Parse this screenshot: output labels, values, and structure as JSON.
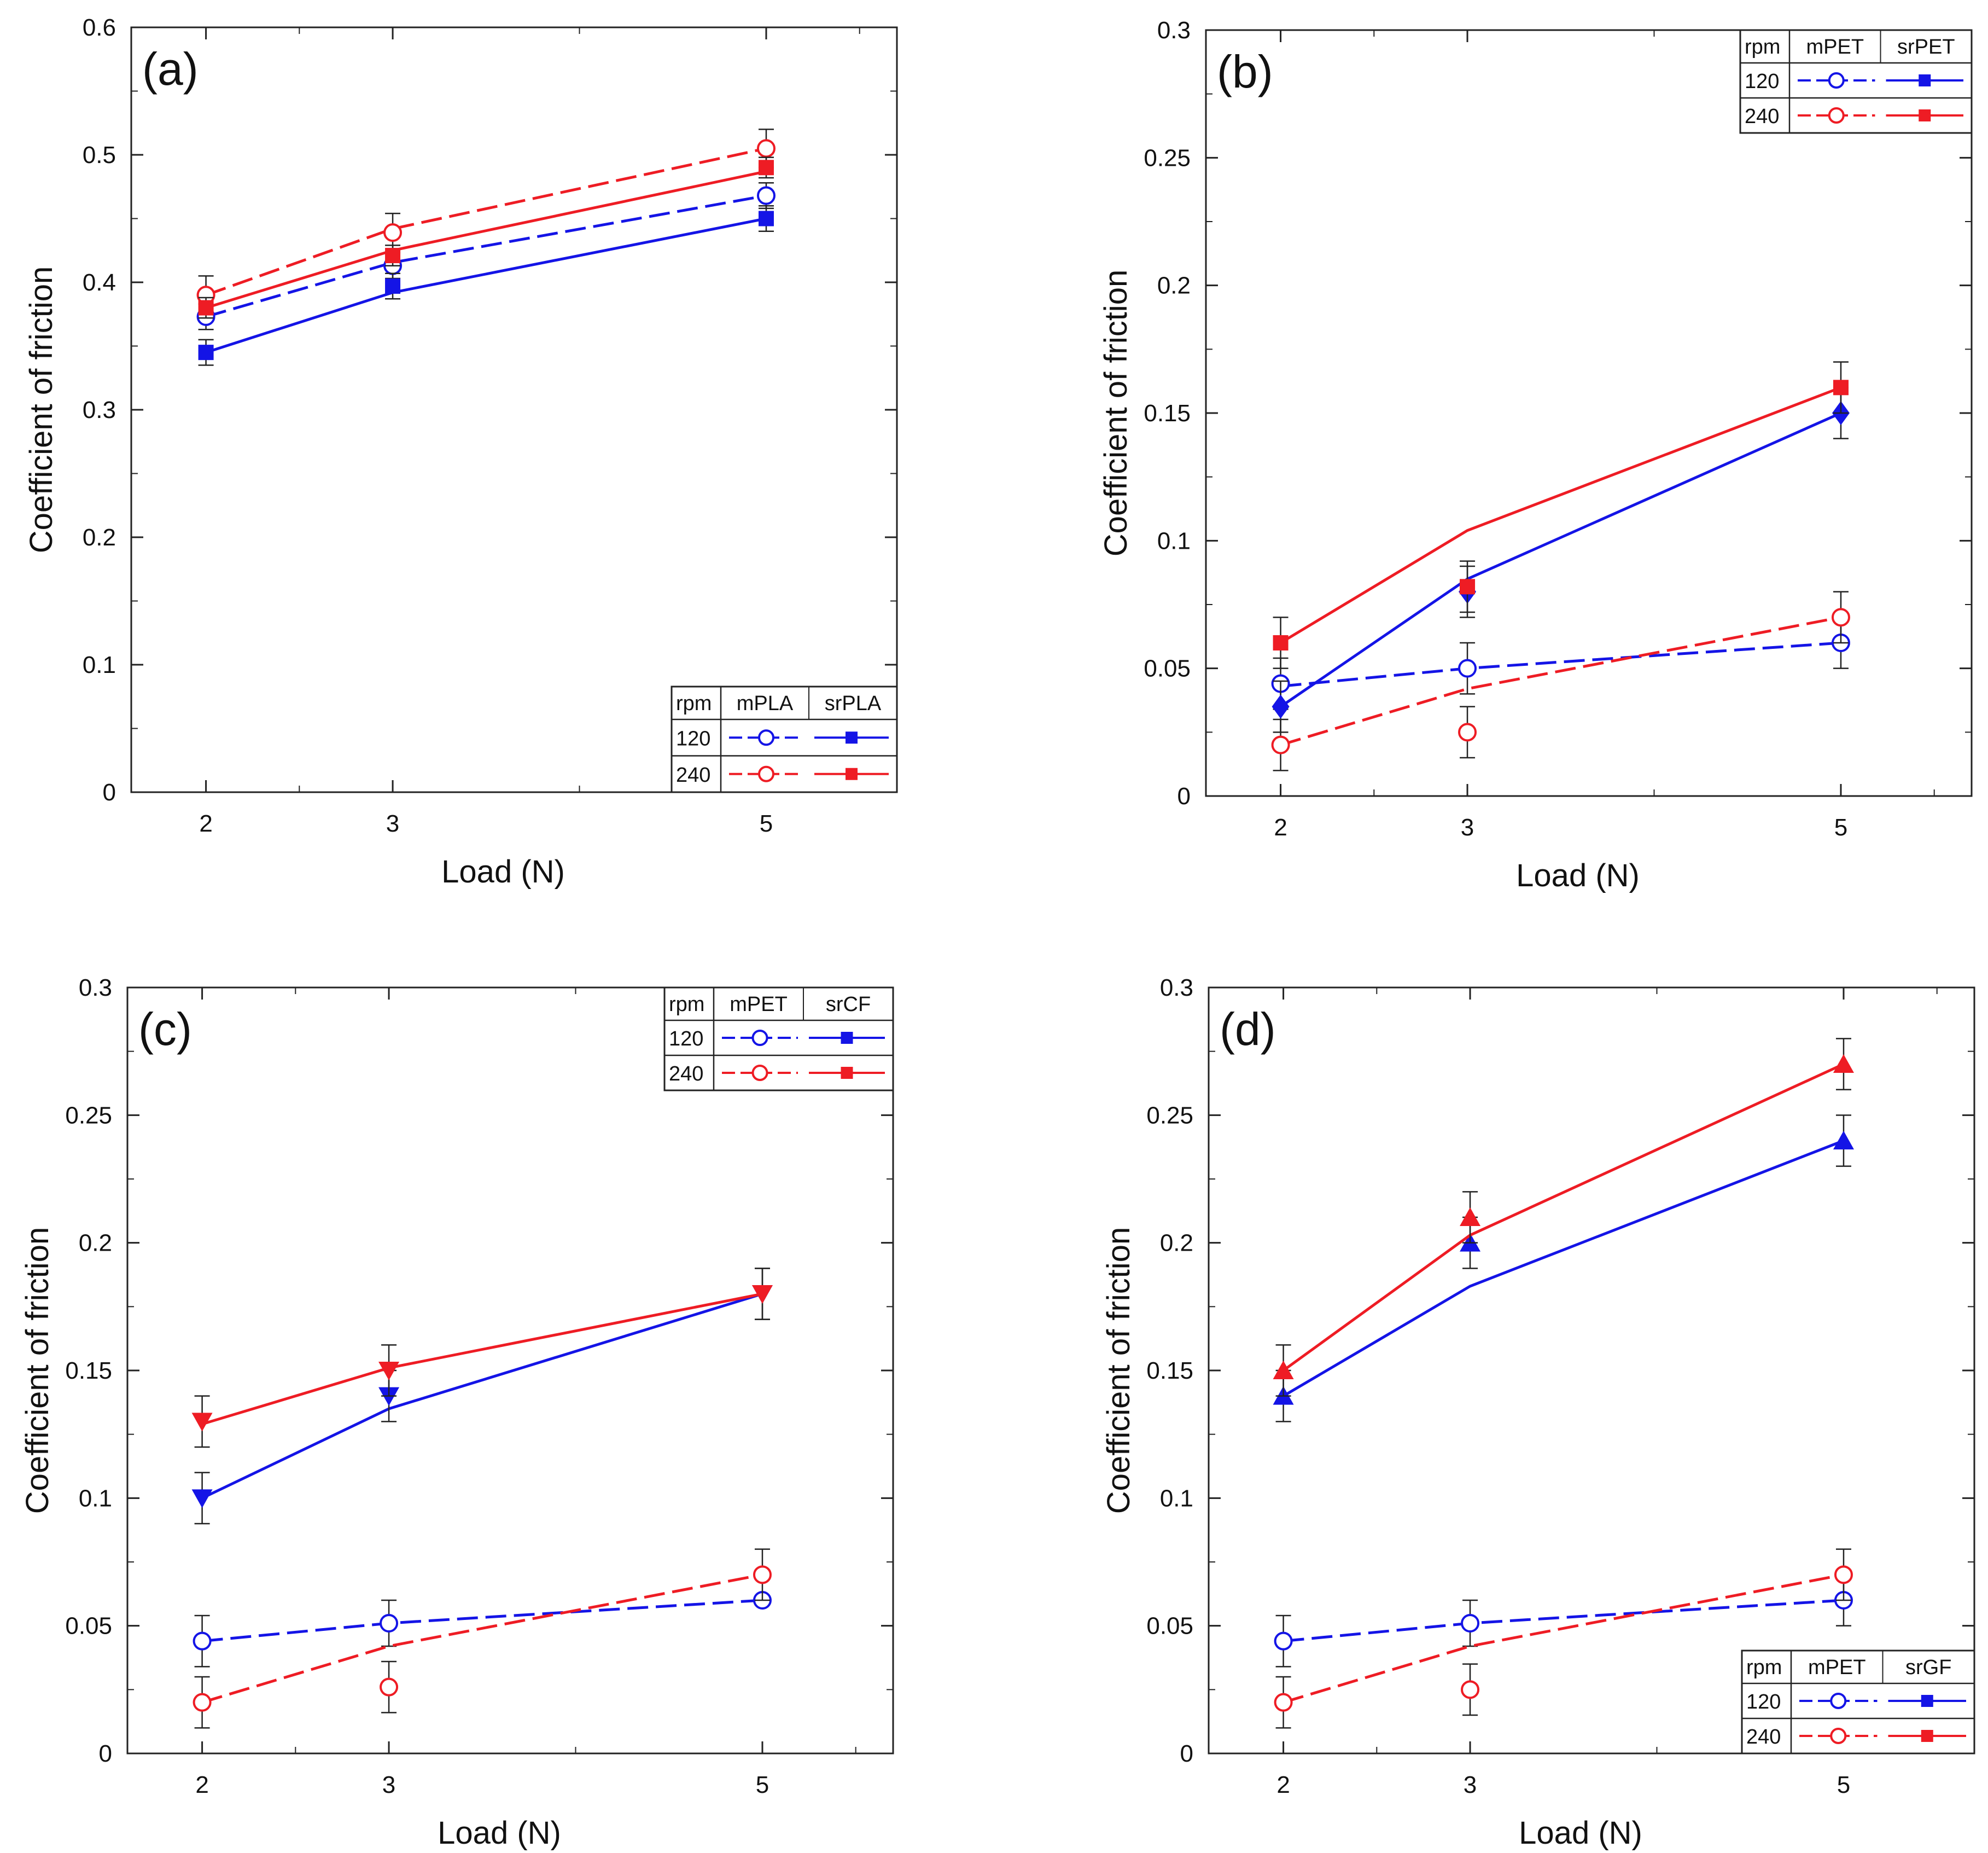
{
  "colors": {
    "rpm120": "#1414e6",
    "rpm240": "#ee1c24",
    "axis": "#222222",
    "errorbar": "#222222"
  },
  "chart_data": [
    {
      "type": "line",
      "label": "(a)",
      "xlabel": "Load (N)",
      "ylabel": "Coefficient of friction",
      "categories": [
        "2",
        "3",
        "5"
      ],
      "x": [
        2,
        3,
        5
      ],
      "xlim": [
        1.6,
        5.7
      ],
      "ylim": [
        0,
        0.6
      ],
      "yticks": [
        0,
        0.1,
        0.2,
        0.3,
        0.4,
        0.5,
        0.6
      ],
      "yticklabels": [
        "0",
        "0.1",
        "0.2",
        "0.3",
        "0.4",
        "0.5",
        "0.6"
      ],
      "legend": {
        "position": "bottom-right",
        "header": [
          "rpm",
          "mPLA",
          "srPLA"
        ],
        "rows": [
          "120",
          "240"
        ]
      },
      "series": [
        {
          "name": "mPLA 120 rpm",
          "rpm": "120",
          "material": "mPLA",
          "color": "blue",
          "marker": "circle-open",
          "line": "dashed",
          "values": [
            0.373,
            0.413,
            0.468
          ],
          "errors": [
            0.01,
            0.01,
            0.01
          ],
          "fit": [
            0.373,
            0.4155,
            0.468
          ]
        },
        {
          "name": "mPLA 240 rpm",
          "rpm": "240",
          "material": "mPLA",
          "color": "red",
          "marker": "circle-open",
          "line": "dashed",
          "values": [
            0.39,
            0.439,
            0.505
          ],
          "errors": [
            0.015,
            0.015,
            0.015
          ],
          "fit": [
            0.39,
            0.442,
            0.505
          ]
        },
        {
          "name": "srPLA 120 rpm",
          "rpm": "120",
          "material": "srPLA",
          "color": "blue",
          "marker": "square",
          "line": "solid",
          "values": [
            0.345,
            0.397,
            0.45
          ],
          "errors": [
            0.01,
            0.01,
            0.01
          ],
          "fit": [
            0.345,
            0.392,
            0.45
          ]
        },
        {
          "name": "srPLA 240 rpm",
          "rpm": "240",
          "material": "srPLA",
          "color": "red",
          "marker": "square",
          "line": "solid",
          "values": [
            0.38,
            0.421,
            0.49
          ],
          "errors": [
            0.008,
            0.008,
            0.008
          ],
          "fit": [
            0.38,
            0.425,
            0.487
          ]
        }
      ]
    },
    {
      "type": "line",
      "label": "(b)",
      "xlabel": "Load (N)",
      "ylabel": "Coefficient of friction",
      "categories": [
        "2",
        "3",
        "5"
      ],
      "x": [
        2,
        3,
        5
      ],
      "xlim": [
        1.6,
        5.7
      ],
      "ylim": [
        0,
        0.3
      ],
      "yticks": [
        0,
        0.05,
        0.1,
        0.15,
        0.2,
        0.25,
        0.3
      ],
      "yticklabels": [
        "0",
        "0.05",
        "0.1",
        "0.15",
        "0.2",
        "0.25",
        "0.3"
      ],
      "legend": {
        "position": "top-right",
        "header": [
          "rpm",
          "mPET",
          "srPET"
        ],
        "rows": [
          "120",
          "240"
        ]
      },
      "series": [
        {
          "name": "mPET 120 rpm",
          "rpm": "120",
          "material": "mPET",
          "color": "blue",
          "marker": "circle-open",
          "line": "dashed",
          "values": [
            0.044,
            0.05,
            0.06
          ],
          "errors": [
            0.01,
            0.01,
            0.01
          ],
          "fit": [
            0.043,
            0.05,
            0.06
          ]
        },
        {
          "name": "mPET 240 rpm",
          "rpm": "240",
          "material": "mPET",
          "color": "red",
          "marker": "circle-open",
          "line": "dashed",
          "values": [
            0.02,
            0.025,
            0.07
          ],
          "errors": [
            0.01,
            0.01,
            0.01
          ],
          "fit": [
            0.02,
            0.042,
            0.07
          ]
        },
        {
          "name": "srPET 120 rpm",
          "rpm": "120",
          "material": "srPET",
          "color": "blue",
          "marker": "diamond",
          "line": "solid",
          "values": [
            0.035,
            0.08,
            0.15
          ],
          "errors": [
            0.01,
            0.01,
            0.01
          ],
          "fit": [
            0.035,
            0.085,
            0.15
          ]
        },
        {
          "name": "srPET 240 rpm",
          "rpm": "240",
          "material": "srPET",
          "color": "red",
          "marker": "square",
          "line": "solid",
          "values": [
            0.06,
            0.082,
            0.16
          ],
          "errors": [
            0.01,
            0.01,
            0.01
          ],
          "fit": [
            0.06,
            0.104,
            0.16
          ]
        }
      ]
    },
    {
      "type": "line",
      "label": "(c)",
      "xlabel": "Load (N)",
      "ylabel": "Coefficient of friction",
      "categories": [
        "2",
        "3",
        "5"
      ],
      "x": [
        2,
        3,
        5
      ],
      "xlim": [
        1.6,
        5.7
      ],
      "ylim": [
        0,
        0.3
      ],
      "yticks": [
        0,
        0.05,
        0.1,
        0.15,
        0.2,
        0.25,
        0.3
      ],
      "yticklabels": [
        "0",
        "0.05",
        "0.1",
        "0.15",
        "0.2",
        "0.25",
        "0.3"
      ],
      "legend": {
        "position": "top-right",
        "header": [
          "rpm",
          "mPET",
          "srCF"
        ],
        "rows": [
          "120",
          "240"
        ]
      },
      "series": [
        {
          "name": "mPET 120 rpm",
          "rpm": "120",
          "material": "mPET",
          "color": "blue",
          "marker": "circle-open",
          "line": "dashed",
          "values": [
            0.044,
            0.051,
            0.06
          ],
          "errors": [
            0.01,
            0.009,
            0.0
          ],
          "fit": [
            0.044,
            0.051,
            0.06
          ]
        },
        {
          "name": "mPET 240 rpm",
          "rpm": "240",
          "material": "mPET",
          "color": "red",
          "marker": "circle-open",
          "line": "dashed",
          "values": [
            0.02,
            0.026,
            0.07
          ],
          "errors": [
            0.01,
            0.01,
            0.01
          ],
          "fit": [
            0.02,
            0.042,
            0.07
          ]
        },
        {
          "name": "srCF 120 rpm",
          "rpm": "120",
          "material": "srCF",
          "color": "blue",
          "marker": "triangle-down",
          "line": "solid",
          "values": [
            0.1,
            0.14,
            0.18
          ],
          "errors": [
            0.01,
            0.01,
            0.01
          ],
          "fit": [
            0.1,
            0.135,
            0.18
          ]
        },
        {
          "name": "srCF 240 rpm",
          "rpm": "240",
          "material": "srCF",
          "color": "red",
          "marker": "triangle-down",
          "line": "solid",
          "values": [
            0.13,
            0.15,
            0.18
          ],
          "errors": [
            0.01,
            0.01,
            0.01
          ],
          "fit": [
            0.129,
            0.151,
            0.18
          ]
        }
      ]
    },
    {
      "type": "line",
      "label": "(d)",
      "xlabel": "Load (N)",
      "ylabel": "Coefficient of friction",
      "categories": [
        "2",
        "3",
        "5"
      ],
      "x": [
        2,
        3,
        5
      ],
      "xlim": [
        1.6,
        5.7
      ],
      "ylim": [
        0,
        0.3
      ],
      "yticks": [
        0,
        0.05,
        0.1,
        0.15,
        0.2,
        0.25,
        0.3
      ],
      "yticklabels": [
        "0",
        "0.05",
        "0.1",
        "0.15",
        "0.2",
        "0.25",
        "0.3"
      ],
      "legend": {
        "position": "bottom-right",
        "header": [
          "rpm",
          "mPET",
          "srGF"
        ],
        "rows": [
          "120",
          "240"
        ]
      },
      "series": [
        {
          "name": "mPET 120 rpm",
          "rpm": "120",
          "material": "mPET",
          "color": "blue",
          "marker": "circle-open",
          "line": "dashed",
          "values": [
            0.044,
            0.051,
            0.06
          ],
          "errors": [
            0.01,
            0.009,
            0.01
          ],
          "fit": [
            0.044,
            0.051,
            0.06
          ]
        },
        {
          "name": "mPET 240 rpm",
          "rpm": "240",
          "material": "mPET",
          "color": "red",
          "marker": "circle-open",
          "line": "dashed",
          "values": [
            0.02,
            0.025,
            0.07
          ],
          "errors": [
            0.01,
            0.01,
            0.01
          ],
          "fit": [
            0.02,
            0.042,
            0.07
          ]
        },
        {
          "name": "srGF 120 rpm",
          "rpm": "120",
          "material": "srGF",
          "color": "blue",
          "marker": "triangle-up",
          "line": "solid",
          "values": [
            0.14,
            0.2,
            0.24
          ],
          "errors": [
            0.01,
            0.01,
            0.01
          ],
          "fit": [
            0.14,
            0.183,
            0.24
          ]
        },
        {
          "name": "srGF 240 rpm",
          "rpm": "240",
          "material": "srGF",
          "color": "red",
          "marker": "triangle-up",
          "line": "solid",
          "values": [
            0.15,
            0.21,
            0.27
          ],
          "errors": [
            0.01,
            0.01,
            0.01
          ],
          "fit": [
            0.15,
            0.203,
            0.27
          ]
        }
      ]
    }
  ]
}
